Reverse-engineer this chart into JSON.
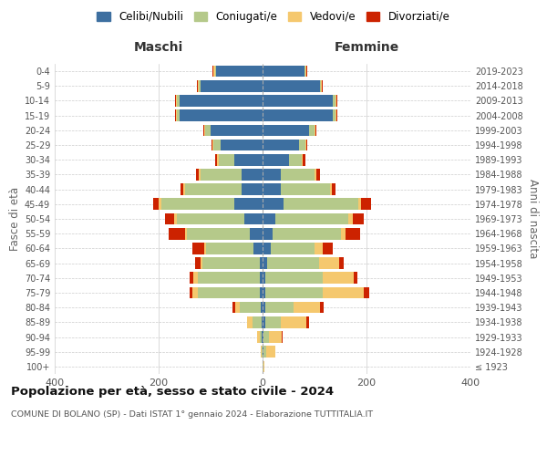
{
  "age_groups": [
    "100+",
    "95-99",
    "90-94",
    "85-89",
    "80-84",
    "75-79",
    "70-74",
    "65-69",
    "60-64",
    "55-59",
    "50-54",
    "45-49",
    "40-44",
    "35-39",
    "30-34",
    "25-29",
    "20-24",
    "15-19",
    "10-14",
    "5-9",
    "0-4"
  ],
  "birth_years": [
    "≤ 1923",
    "1924-1928",
    "1929-1933",
    "1934-1938",
    "1939-1943",
    "1944-1948",
    "1949-1953",
    "1954-1958",
    "1959-1963",
    "1964-1968",
    "1969-1973",
    "1974-1978",
    "1979-1983",
    "1984-1988",
    "1989-1993",
    "1994-1998",
    "1999-2003",
    "2004-2008",
    "2009-2013",
    "2014-2018",
    "2019-2023"
  ],
  "males": {
    "celibi": [
      0,
      0,
      1,
      2,
      3,
      5,
      5,
      5,
      18,
      25,
      35,
      55,
      40,
      40,
      55,
      80,
      100,
      160,
      160,
      120,
      90
    ],
    "coniugati": [
      0,
      2,
      5,
      18,
      40,
      120,
      120,
      110,
      90,
      120,
      130,
      140,
      110,
      80,
      30,
      15,
      10,
      5,
      5,
      2,
      2
    ],
    "vedovi": [
      0,
      2,
      5,
      10,
      10,
      10,
      8,
      5,
      5,
      5,
      5,
      5,
      3,
      3,
      2,
      2,
      2,
      2,
      2,
      2,
      2
    ],
    "divorziati": [
      0,
      0,
      0,
      0,
      5,
      5,
      8,
      10,
      22,
      30,
      18,
      10,
      5,
      5,
      5,
      2,
      2,
      2,
      2,
      2,
      2
    ]
  },
  "females": {
    "nubili": [
      0,
      2,
      2,
      5,
      5,
      5,
      5,
      8,
      15,
      20,
      25,
      40,
      35,
      35,
      50,
      70,
      90,
      135,
      135,
      110,
      80
    ],
    "coniugate": [
      2,
      5,
      10,
      30,
      55,
      110,
      110,
      100,
      85,
      130,
      140,
      145,
      95,
      65,
      25,
      12,
      10,
      5,
      5,
      2,
      2
    ],
    "vedove": [
      2,
      18,
      25,
      50,
      50,
      80,
      60,
      40,
      15,
      10,
      8,
      5,
      3,
      3,
      2,
      2,
      2,
      2,
      2,
      2,
      2
    ],
    "divorziate": [
      0,
      0,
      2,
      5,
      8,
      10,
      8,
      8,
      20,
      28,
      22,
      18,
      8,
      8,
      5,
      2,
      2,
      2,
      2,
      2,
      2
    ]
  },
  "colors": {
    "celibi": "#3d6fa0",
    "coniugati": "#b5c98a",
    "vedovi": "#f5c86e",
    "divorziati": "#cc2200"
  },
  "legend_labels": [
    "Celibi/Nubili",
    "Coniugati/e",
    "Vedovi/e",
    "Divorziati/e"
  ],
  "title": "Popolazione per età, sesso e stato civile - 2024",
  "subtitle": "COMUNE DI BOLANO (SP) - Dati ISTAT 1° gennaio 2024 - Elaborazione TUTTITALIA.IT",
  "xlabel_left": "Maschi",
  "xlabel_right": "Femmine",
  "ylabel_left": "Fasce di età",
  "ylabel_right": "Anni di nascita",
  "xlim": 400,
  "background_color": "#ffffff"
}
